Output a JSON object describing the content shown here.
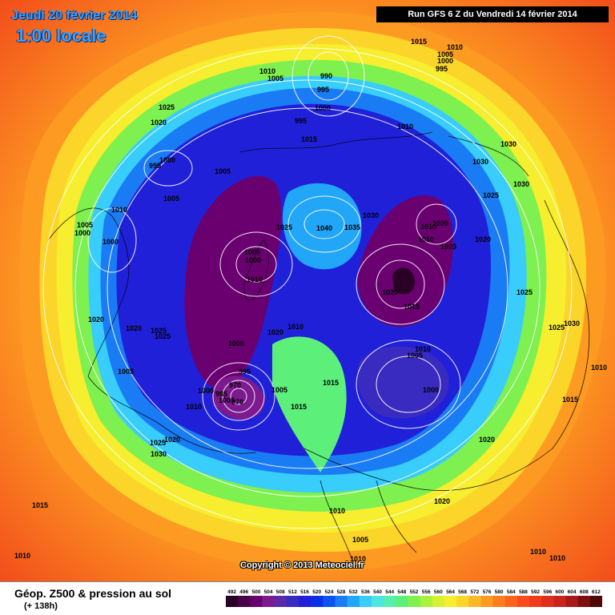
{
  "header": {
    "date": "Jeudi 20 février 2014",
    "time": "1:00 locale",
    "run": "Run GFS 6 Z du Vendredi 14 février 2014"
  },
  "footer": {
    "parameter": "Géop. Z500 & pression au sol",
    "lead": "(+ 138h)",
    "copyright": "Copyright © 2013 Meteociel.fr"
  },
  "legend": {
    "labels": [
      "492",
      "496",
      "500",
      "504",
      "508",
      "512",
      "516",
      "520",
      "524",
      "528",
      "532",
      "536",
      "540",
      "544",
      "548",
      "552",
      "556",
      "560",
      "564",
      "568",
      "572",
      "576",
      "580",
      "584",
      "588",
      "592",
      "596",
      "600",
      "604",
      "608",
      "612"
    ],
    "colors": [
      "#2a0026",
      "#4a0046",
      "#6a0070",
      "#7d1a8f",
      "#5a2aa8",
      "#3a2bc0",
      "#2020d8",
      "#0a30e8",
      "#0a55f0",
      "#1a7cf4",
      "#22a6f8",
      "#38cdfa",
      "#4ee6e0",
      "#55f0b0",
      "#5cf07a",
      "#7ef050",
      "#a8f23c",
      "#d6f032",
      "#f6ee2e",
      "#fcd52a",
      "#fdb828",
      "#fd9a22",
      "#fd7e1e",
      "#fc641c",
      "#f84c1a",
      "#f03a1a",
      "#e02e1c",
      "#c8241c",
      "#a81a1a",
      "#7e1010",
      "#4e0808"
    ]
  },
  "isobar_labels": [
    {
      "text": "1015",
      "area": "top-center"
    },
    {
      "text": "1010",
      "area": "top-right"
    },
    {
      "text": "1005",
      "area": "top-right"
    },
    {
      "text": "1000",
      "area": "top-right"
    },
    {
      "text": "995",
      "area": "top-right"
    },
    {
      "text": "1010",
      "area": "top-center-left"
    },
    {
      "text": "1005",
      "area": "top-center-left"
    },
    {
      "text": "990",
      "area": "top-center"
    },
    {
      "text": "995",
      "area": "top-center"
    },
    {
      "text": "1000",
      "area": "top-center"
    },
    {
      "text": "995",
      "area": "top-center"
    },
    {
      "text": "1015",
      "area": "top-center"
    },
    {
      "text": "1025",
      "area": "upper-left"
    },
    {
      "text": "1020",
      "area": "upper-left"
    },
    {
      "text": "1010",
      "area": "upper-right"
    },
    {
      "text": "1030",
      "area": "upper-right"
    },
    {
      "text": "1030",
      "area": "upper-right"
    },
    {
      "text": "1000",
      "area": "upper-left"
    },
    {
      "text": "995",
      "area": "upper-left"
    },
    {
      "text": "1005",
      "area": "upper-left"
    },
    {
      "text": "1005",
      "area": "upper-left"
    },
    {
      "text": "1010",
      "area": "left"
    },
    {
      "text": "1025",
      "area": "right"
    },
    {
      "text": "1030",
      "area": "right"
    },
    {
      "text": "1005",
      "area": "left"
    },
    {
      "text": "1000",
      "area": "left"
    },
    {
      "text": "1000",
      "area": "left"
    },
    {
      "text": "1025",
      "area": "center"
    },
    {
      "text": "1040",
      "area": "center"
    },
    {
      "text": "1035",
      "area": "center"
    },
    {
      "text": "1030",
      "area": "center-right"
    },
    {
      "text": "1010",
      "area": "center-right"
    },
    {
      "text": "1020",
      "area": "center-right"
    },
    {
      "text": "1010",
      "area": "center-right"
    },
    {
      "text": "1025",
      "area": "center-right"
    },
    {
      "text": "1020",
      "area": "right"
    },
    {
      "text": "1005",
      "area": "center-left"
    },
    {
      "text": "1000",
      "area": "center-left"
    },
    {
      "text": "1010",
      "area": "center-left"
    },
    {
      "text": "1020",
      "area": "center-right"
    },
    {
      "text": "1015",
      "area": "center-right"
    },
    {
      "text": "1025",
      "area": "right"
    },
    {
      "text": "1020",
      "area": "left"
    },
    {
      "text": "1020",
      "area": "left"
    },
    {
      "text": "1025",
      "area": "left"
    },
    {
      "text": "1025",
      "area": "left"
    },
    {
      "text": "1020",
      "area": "center"
    },
    {
      "text": "1010",
      "area": "center"
    },
    {
      "text": "1005",
      "area": "center-left"
    },
    {
      "text": "1030",
      "area": "right"
    },
    {
      "text": "1025",
      "area": "right"
    },
    {
      "text": "1010",
      "area": "center-right"
    },
    {
      "text": "1005",
      "area": "center-right"
    },
    {
      "text": "1005",
      "area": "left"
    },
    {
      "text": "995",
      "area": "center-left"
    },
    {
      "text": "970",
      "area": "center-left"
    },
    {
      "text": "1000",
      "area": "center-left"
    },
    {
      "text": "985",
      "area": "center-left"
    },
    {
      "text": "1005",
      "area": "center-left"
    },
    {
      "text": "970",
      "area": "center-left"
    },
    {
      "text": "1005",
      "area": "center"
    },
    {
      "text": "1015",
      "area": "center"
    },
    {
      "text": "1000",
      "area": "center-right"
    },
    {
      "text": "1010",
      "area": "right"
    },
    {
      "text": "1010",
      "area": "left"
    },
    {
      "text": "1015",
      "area": "center"
    },
    {
      "text": "1015",
      "area": "right"
    },
    {
      "text": "1025",
      "area": "lower-left"
    },
    {
      "text": "1030",
      "area": "lower-left"
    },
    {
      "text": "1020",
      "area": "lower-left"
    },
    {
      "text": "1020",
      "area": "lower-right"
    },
    {
      "text": "1015",
      "area": "lower-left"
    },
    {
      "text": "1010",
      "area": "bottom-center"
    },
    {
      "text": "1020",
      "area": "lower-right"
    },
    {
      "text": "1005",
      "area": "bottom-center"
    },
    {
      "text": "1010",
      "area": "bottom-left"
    },
    {
      "text": "1010",
      "area": "bottom-center"
    },
    {
      "text": "1010",
      "area": "bottom-right"
    },
    {
      "text": "1010",
      "area": "bottom-right"
    }
  ]
}
